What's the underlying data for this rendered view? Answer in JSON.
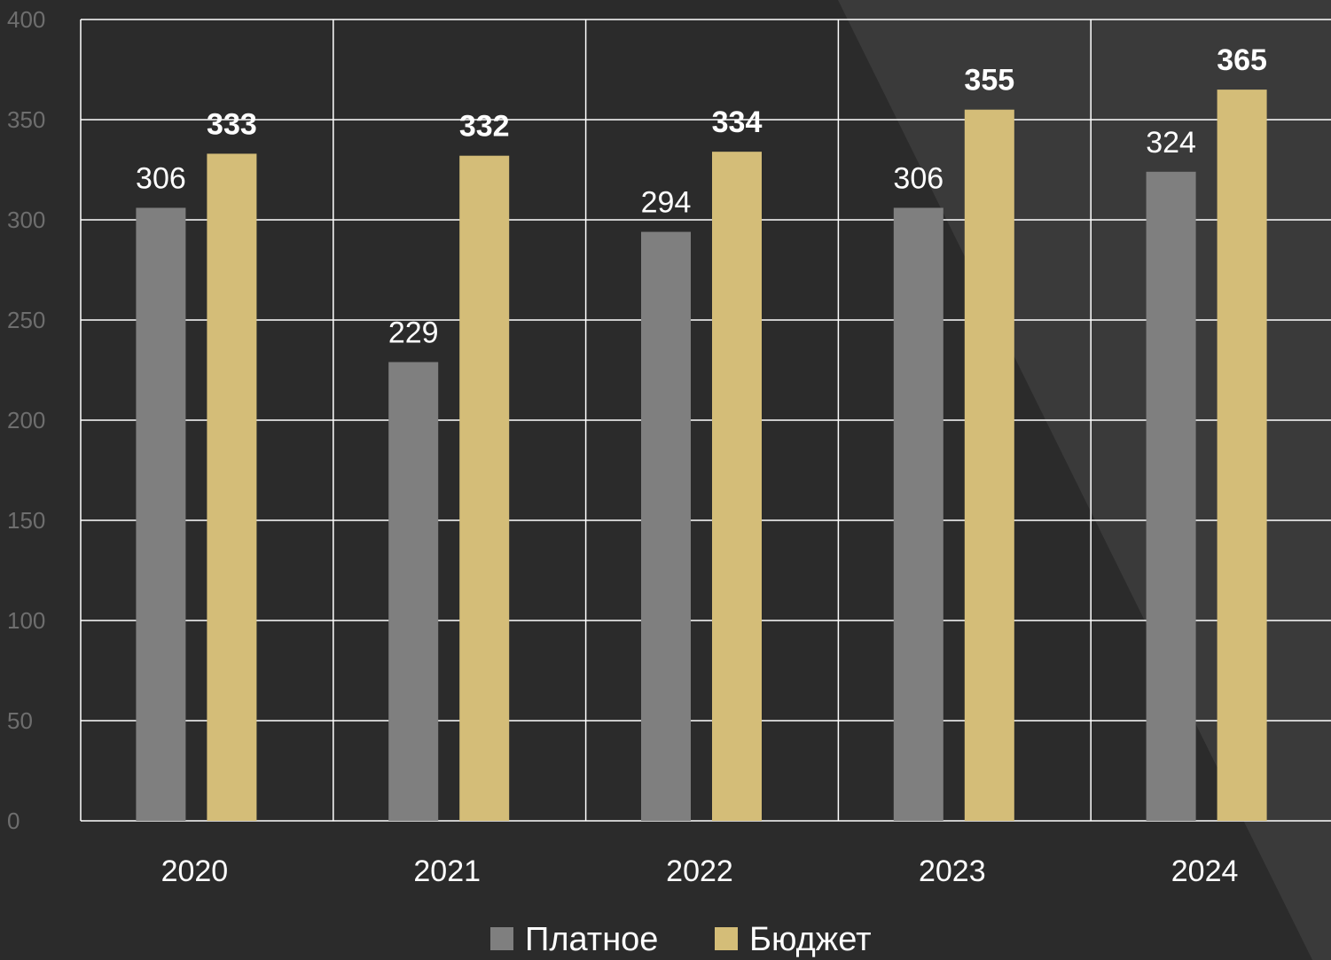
{
  "chart_data": {
    "type": "bar",
    "categories": [
      "2020",
      "2021",
      "2022",
      "2023",
      "2024"
    ],
    "series": [
      {
        "name": "Платное",
        "values": [
          306,
          229,
          294,
          306,
          324
        ],
        "color": "#7f7f7f"
      },
      {
        "name": "Бюджет",
        "values": [
          333,
          332,
          334,
          355,
          365
        ],
        "color": "#d4bd78"
      }
    ],
    "ylim": [
      0,
      400
    ],
    "yticks": [
      0,
      50,
      100,
      150,
      200,
      250,
      300,
      350,
      400
    ],
    "grid": true,
    "legend": "bottom",
    "colors": {
      "background": "#2b2b2b",
      "grid": "#ffffff",
      "tick_text": "#6e6e6e",
      "text": "#ffffff"
    }
  }
}
